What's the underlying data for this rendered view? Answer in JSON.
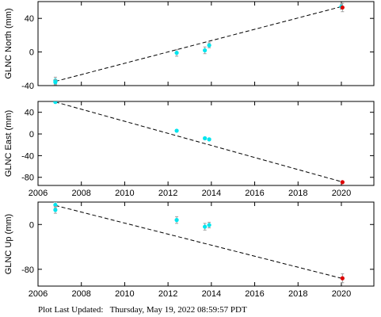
{
  "footer": {
    "label": "Plot Last Updated:",
    "value": "Thursday, May 19, 2022 08:59:57 PDT"
  },
  "colors": {
    "points": "#00e5ee",
    "latest_point": "#dd0000",
    "error_bars": "#a0a0a0",
    "trend_line": "#000000"
  },
  "chart_data": [
    {
      "type": "scatter",
      "ylabel": "GLNC North (mm)",
      "xlim": [
        2006,
        2021.5
      ],
      "ylim": [
        -40,
        60
      ],
      "xticks": [
        2006,
        2008,
        2010,
        2012,
        2014,
        2016,
        2018,
        2020
      ],
      "yticks": [
        -40,
        0,
        40
      ],
      "grid": false,
      "points": [
        {
          "x": 2006.8,
          "y": -34,
          "err": 4
        },
        {
          "x": 2006.8,
          "y": -36,
          "err": 3
        },
        {
          "x": 2012.4,
          "y": -1,
          "err": 4
        },
        {
          "x": 2013.7,
          "y": 2,
          "err": 4
        },
        {
          "x": 2013.9,
          "y": 8,
          "err": 3
        },
        {
          "x": 2020.0,
          "y": 54,
          "err": 3
        }
      ],
      "latest": {
        "x": 2020.05,
        "y": 53,
        "err": 5
      },
      "trend": [
        {
          "x": 2006.8,
          "y": -35
        },
        {
          "x": 2020.0,
          "y": 54
        }
      ],
      "xtick_labels_shown": false
    },
    {
      "type": "scatter",
      "ylabel": "GLNC East (mm)",
      "xlim": [
        2006,
        2021.5
      ],
      "ylim": [
        -95,
        60
      ],
      "xticks": [
        2006,
        2008,
        2010,
        2012,
        2014,
        2016,
        2018,
        2020
      ],
      "yticks": [
        -80,
        -40,
        0,
        40
      ],
      "grid": false,
      "points": [
        {
          "x": 2006.8,
          "y": 59,
          "err": 2
        },
        {
          "x": 2012.4,
          "y": 6,
          "err": 2
        },
        {
          "x": 2013.7,
          "y": -8,
          "err": 2
        },
        {
          "x": 2013.9,
          "y": -10,
          "err": 2
        }
      ],
      "latest": {
        "x": 2020.05,
        "y": -89,
        "err": 2
      },
      "trend": [
        {
          "x": 2006.8,
          "y": 59
        },
        {
          "x": 2020.0,
          "y": -88
        }
      ],
      "xtick_labels_shown": true
    },
    {
      "type": "scatter",
      "ylabel": "GLNC Up (mm)",
      "xlim": [
        2006,
        2021.5
      ],
      "ylim": [
        -110,
        40
      ],
      "xticks": [
        2006,
        2008,
        2010,
        2012,
        2014,
        2016,
        2018,
        2020
      ],
      "yticks": [
        -80,
        0
      ],
      "grid": false,
      "points": [
        {
          "x": 2006.8,
          "y": 35,
          "err": 5
        },
        {
          "x": 2006.8,
          "y": 26,
          "err": 6
        },
        {
          "x": 2012.4,
          "y": 8,
          "err": 6
        },
        {
          "x": 2013.7,
          "y": -4,
          "err": 6
        },
        {
          "x": 2013.9,
          "y": -1,
          "err": 5
        }
      ],
      "latest": {
        "x": 2020.05,
        "y": -96,
        "err": 8
      },
      "trend": [
        {
          "x": 2006.8,
          "y": 34
        },
        {
          "x": 2020.0,
          "y": -96
        }
      ],
      "xtick_labels_shown": true
    }
  ]
}
